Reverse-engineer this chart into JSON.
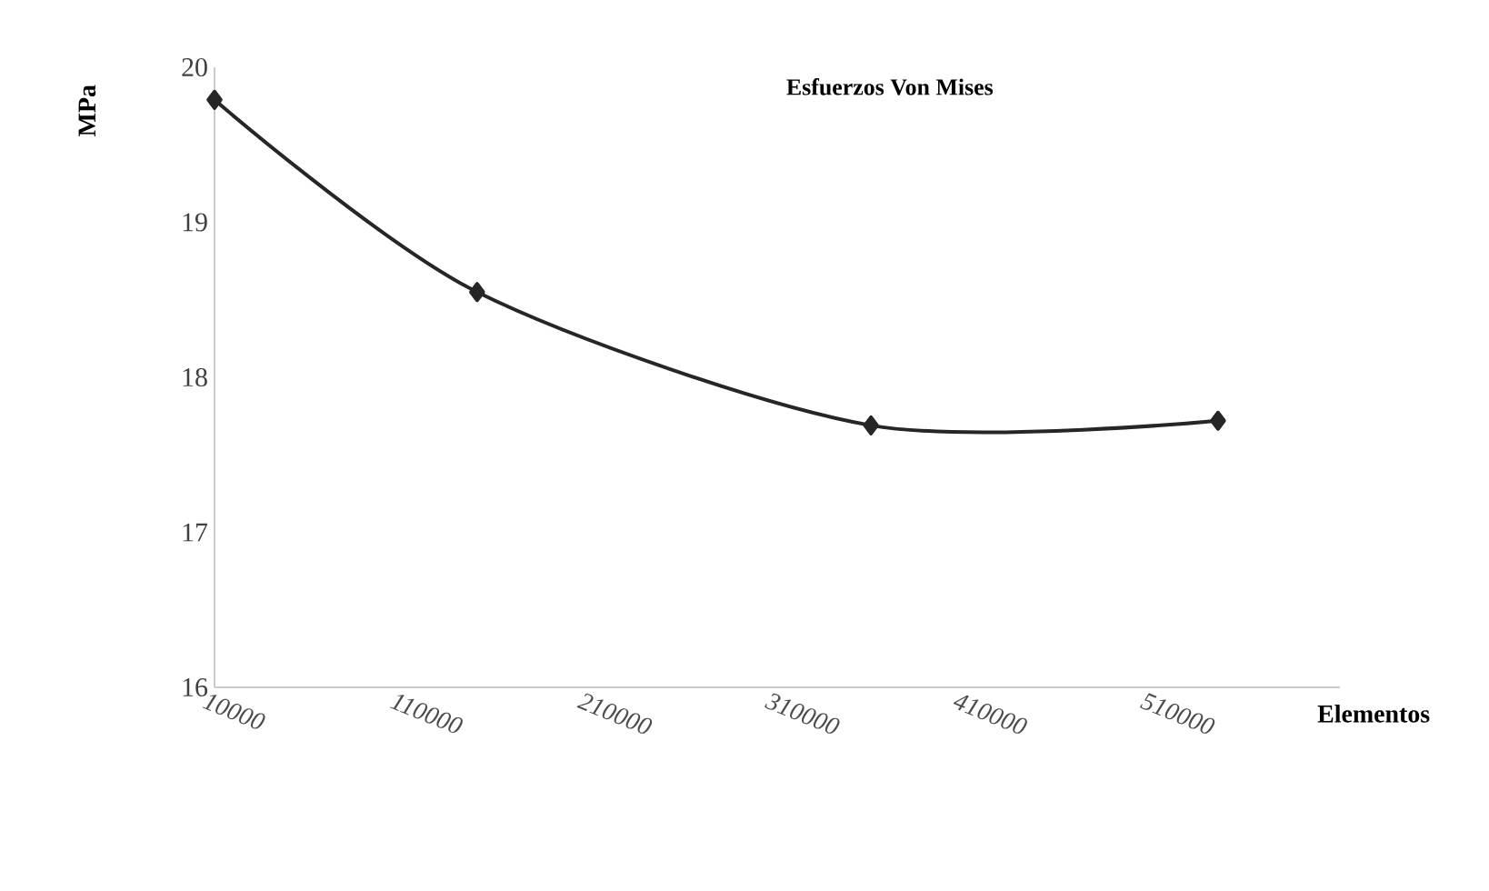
{
  "chart_data": {
    "type": "line",
    "title": "Esfuerzos Von Mises",
    "xlabel": "Elementos",
    "ylabel": "MPa",
    "x": [
      10000,
      150000,
      360000,
      545000
    ],
    "series": [
      {
        "color": "#262626",
        "values": [
          19.79,
          18.55,
          17.69,
          17.72
        ]
      }
    ],
    "xlim": [
      10000,
      610000
    ],
    "xticks": [
      10000,
      110000,
      210000,
      310000,
      410000,
      510000
    ],
    "ylim": [
      16,
      20
    ],
    "yticks": [
      16,
      17,
      18,
      19,
      20
    ],
    "grid": false,
    "marker": "diamond",
    "line_style": "solid"
  }
}
